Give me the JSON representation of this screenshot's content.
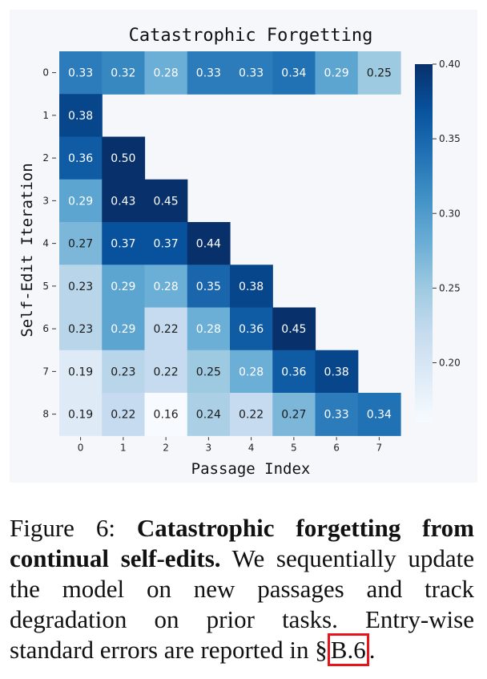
{
  "chart_data": {
    "type": "heatmap",
    "title": "Catastrophic Forgetting",
    "xlabel": "Passage Index",
    "ylabel": "Self-Edit Iteration",
    "x_ticks": [
      "0",
      "1",
      "2",
      "3",
      "4",
      "5",
      "6",
      "7"
    ],
    "y_ticks": [
      "0",
      "1",
      "2",
      "3",
      "4",
      "5",
      "6",
      "7",
      "8"
    ],
    "matrix": [
      [
        0.33,
        0.32,
        0.28,
        0.33,
        0.33,
        0.34,
        0.29,
        0.25
      ],
      [
        0.38,
        null,
        null,
        null,
        null,
        null,
        null,
        null
      ],
      [
        0.36,
        0.5,
        null,
        null,
        null,
        null,
        null,
        null
      ],
      [
        0.29,
        0.43,
        0.45,
        null,
        null,
        null,
        null,
        null
      ],
      [
        0.27,
        0.37,
        0.37,
        0.44,
        null,
        null,
        null,
        null
      ],
      [
        0.23,
        0.29,
        0.28,
        0.35,
        0.38,
        null,
        null,
        null
      ],
      [
        0.23,
        0.29,
        0.22,
        0.28,
        0.36,
        0.45,
        null,
        null
      ],
      [
        0.19,
        0.23,
        0.22,
        0.25,
        0.28,
        0.36,
        0.38,
        null
      ],
      [
        0.19,
        0.22,
        0.16,
        0.24,
        0.22,
        0.27,
        0.33,
        0.34
      ]
    ],
    "colorbar": {
      "min": 0.16,
      "max": 0.4,
      "ticks": [
        0.2,
        0.25,
        0.3,
        0.35,
        0.4
      ],
      "tick_labels": [
        "0.20",
        "0.25",
        "0.30",
        "0.35",
        "0.40"
      ],
      "colormap": "Blues"
    }
  },
  "caption": {
    "label": "Figure 6:",
    "bold": "Catastrophic forgetting from continual self-edits.",
    "text": "We sequentially update the model on new passages and track degradation on prior tasks. Entry-wise standard errors are reported in §",
    "ref": "B.6",
    "end": "."
  }
}
